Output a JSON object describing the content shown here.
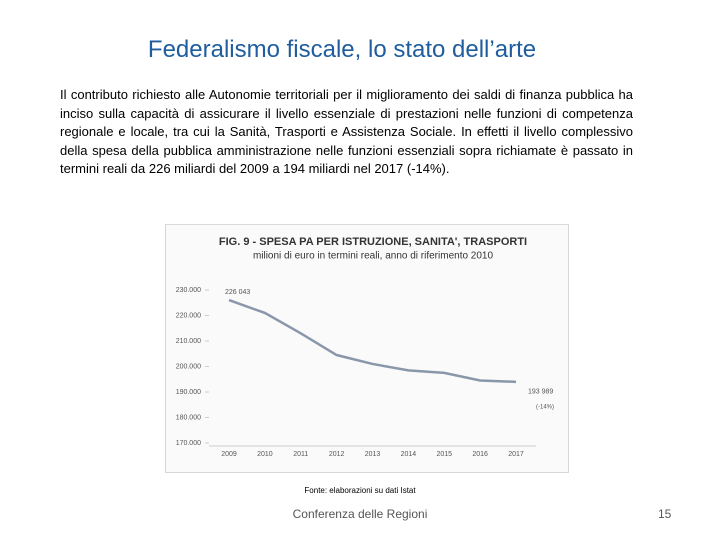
{
  "title": "Federalismo fiscale, lo stato dell’arte",
  "body": "Il contributo richiesto alle Autonomie territoriali per il miglioramento dei saldi di finanza pubblica ha inciso sulla capacità di assicurare il livello essenziale di prestazioni nelle funzioni di competenza regionale e locale, tra cui la Sanità, Trasporti e Assistenza Sociale. In effetti il livello complessivo della spesa della pubblica amministrazione nelle funzioni essenziali sopra richiamate è passato in termini reali da 226 miliardi del 2009 a 194 miliardi nel 2017 (-14%).",
  "chart_data": {
    "type": "line",
    "title": "FIG. 9 - SPESA PA PER ISTRUZIONE, SANITA', TRASPORTI",
    "subtitle": "milioni di euro in termini reali, anno di riferimento 2010",
    "categories": [
      "2009",
      "2010",
      "2011",
      "2012",
      "2013",
      "2014",
      "2015",
      "2016",
      "2017"
    ],
    "values": [
      226043,
      221000,
      213000,
      204500,
      201000,
      198500,
      197500,
      194500,
      193989
    ],
    "value_labels": [
      "226 043",
      null,
      null,
      null,
      null,
      null,
      null,
      null,
      "193 989"
    ],
    "annotation": "(-14%)",
    "color": "#8a97ab",
    "ylim": [
      170000,
      230000
    ],
    "yticks": [
      {
        "value": 170000,
        "label": "170.000"
      },
      {
        "value": 180000,
        "label": "180.000"
      },
      {
        "value": 190000,
        "label": "190.000"
      },
      {
        "value": 200000,
        "label": "200.000"
      },
      {
        "value": 210000,
        "label": "210.000"
      },
      {
        "value": 220000,
        "label": "220.000"
      },
      {
        "value": 230000,
        "label": "230.000"
      }
    ],
    "grid": false
  },
  "source": "Fonte: elaborazioni su dati Istat",
  "footer": "Conferenza delle Regioni",
  "page_number": "15"
}
